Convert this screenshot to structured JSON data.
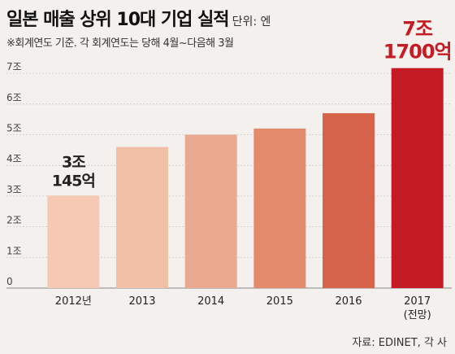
{
  "header": {
    "title": "일본 매출 상위 10대 기업 실적",
    "unit": "단위: 엔",
    "subtitle": "※회계연도 기준. 각 회계연도는 당해 4월~다음해 3월"
  },
  "source": "자료: EDINET, 각 사",
  "chart_data": {
    "type": "bar",
    "title": "일본 매출 상위 10대 기업 실적",
    "categories": [
      "2012년",
      "2013",
      "2014",
      "2015",
      "2016",
      "2017"
    ],
    "category_notes": [
      "",
      "",
      "",
      "",
      "",
      "(전망)"
    ],
    "values": [
      3.0145,
      4.6,
      5.0,
      5.2,
      5.7,
      7.17
    ],
    "ylim": [
      0,
      7.6
    ],
    "yticks": [
      "0",
      "1조",
      "2조",
      "3조",
      "4조",
      "5조",
      "6조",
      "7조"
    ],
    "grid": true,
    "bar_colors": [
      "#f5c9b4",
      "#f1bea6",
      "#eaaa8f",
      "#e38c6d",
      "#d6644a",
      "#c51b24"
    ],
    "annotations": [
      {
        "index": 0,
        "line1": "3조",
        "line2": "145억",
        "color": "#222222"
      },
      {
        "index": 5,
        "line1": "7조",
        "line2": "1700억",
        "color": "#c51b24"
      }
    ]
  }
}
